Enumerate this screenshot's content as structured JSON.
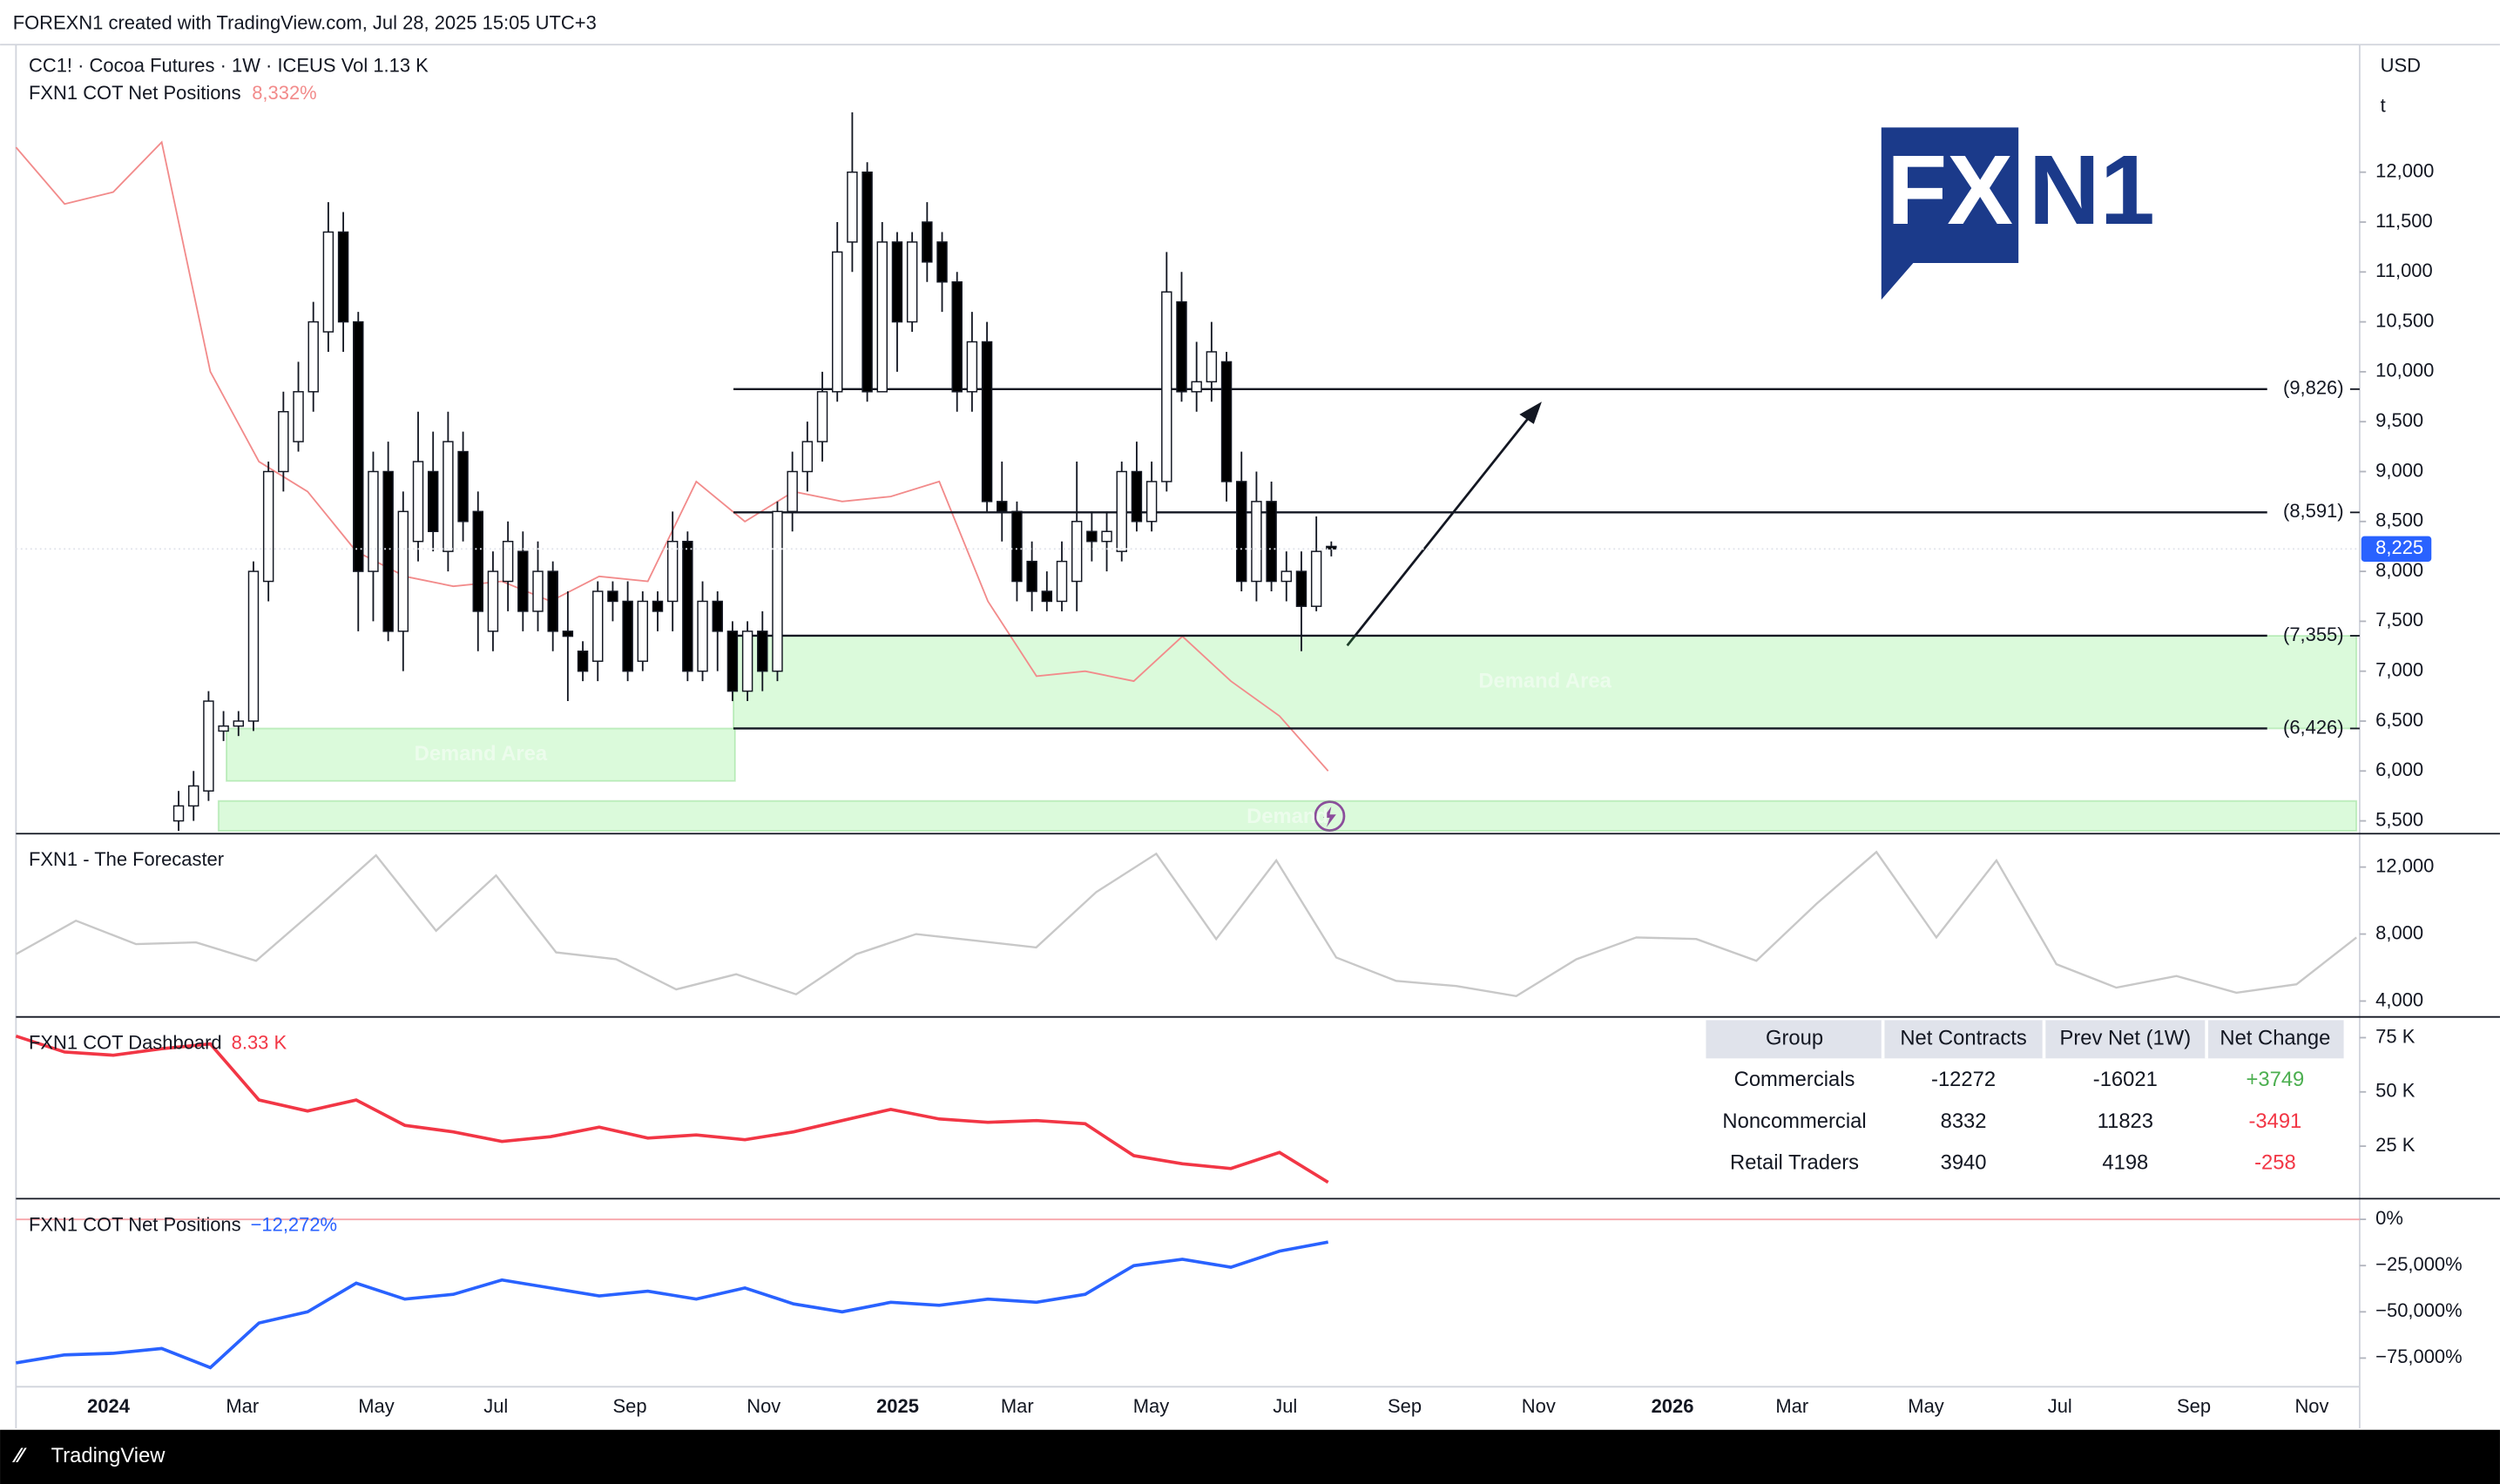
{
  "header": {
    "text": "FOREXN1 created with TradingView.com, Jul 28, 2025 15:05 UTC+3"
  },
  "footer": {
    "text": "TradingView"
  },
  "logo": {
    "left": "FX",
    "right": "N1"
  },
  "time_axis": [
    "2024",
    "Mar",
    "May",
    "Jul",
    "Sep",
    "Nov",
    "2025",
    "Mar",
    "May",
    "Jul",
    "Sep",
    "Nov",
    "2026",
    "Mar",
    "May",
    "Jul",
    "Sep",
    "Nov"
  ],
  "chart_data": [
    {
      "type": "candlestick",
      "title": "CC1! · Cocoa Futures · 1W · ICEUS",
      "volume": "Vol 1.13 K",
      "currency": "USD",
      "unit": "t",
      "open": [
        5500,
        5650,
        5800,
        6400,
        6450,
        6500,
        7900,
        9000,
        9300,
        9800,
        10400,
        11400,
        10500,
        8000,
        9000,
        7400,
        8300,
        9000,
        8200,
        9200,
        8600,
        7400,
        7900,
        8200,
        7600,
        8000,
        7400,
        7200,
        7100,
        7800,
        7700,
        7100,
        7700,
        7700,
        8300,
        7000,
        7700,
        7400,
        6800,
        7400,
        7000,
        8600,
        9000,
        9300,
        9800,
        11300,
        12000,
        9800,
        11300,
        10500,
        11500,
        11300,
        10900,
        9800,
        10300,
        8700,
        8600,
        8100,
        7800,
        7700,
        7900,
        8400,
        8300,
        8200,
        9000,
        8500,
        8900,
        10700,
        9800,
        9900,
        10100,
        8900,
        7900,
        8700,
        7900,
        8000,
        7650,
        8250
      ],
      "high": [
        5800,
        6000,
        6800,
        6600,
        6600,
        8100,
        9100,
        9800,
        10100,
        10700,
        11700,
        11600,
        10600,
        9200,
        9300,
        8800,
        9600,
        9400,
        9600,
        9400,
        8800,
        8200,
        8500,
        8400,
        8300,
        8100,
        7800,
        7300,
        7900,
        7900,
        7900,
        7800,
        7800,
        8600,
        8400,
        7900,
        7800,
        7500,
        7500,
        7600,
        8700,
        9200,
        9500,
        10000,
        11500,
        12600,
        12100,
        11500,
        11400,
        11400,
        11700,
        11400,
        11000,
        10600,
        10500,
        9100,
        8700,
        8300,
        8000,
        8300,
        9100,
        8600,
        8600,
        9100,
        9300,
        9100,
        11200,
        11000,
        10300,
        10500,
        10200,
        9200,
        9000,
        8900,
        8200,
        8200,
        8550,
        8300
      ],
      "low": [
        5400,
        5500,
        5700,
        6300,
        6350,
        6400,
        7700,
        8800,
        9200,
        9600,
        10200,
        10200,
        7400,
        7500,
        7300,
        7000,
        8100,
        8200,
        8000,
        8300,
        7200,
        7200,
        7600,
        7400,
        7400,
        7200,
        6700,
        6900,
        6900,
        7500,
        6900,
        7000,
        7400,
        7400,
        6900,
        6900,
        7000,
        6700,
        6700,
        6800,
        6900,
        8400,
        8800,
        9100,
        9700,
        11000,
        9700,
        9800,
        10000,
        10400,
        10900,
        10600,
        9600,
        9600,
        8600,
        8300,
        7700,
        7600,
        7600,
        7600,
        7600,
        8100,
        8000,
        8100,
        8400,
        8400,
        8800,
        9700,
        9600,
        9700,
        8700,
        7800,
        7700,
        7800,
        7700,
        7200,
        7600,
        8150
      ],
      "close": [
        5650,
        5850,
        6700,
        6450,
        6500,
        8000,
        9000,
        9600,
        9800,
        10500,
        11400,
        10500,
        8000,
        9000,
        7400,
        8600,
        9100,
        8400,
        9300,
        8500,
        7600,
        8000,
        8300,
        7600,
        8000,
        7400,
        7350,
        7000,
        7800,
        7700,
        7000,
        7700,
        7600,
        8300,
        7000,
        7700,
        7400,
        6800,
        7400,
        7000,
        8600,
        9000,
        9300,
        9800,
        11200,
        12000,
        9800,
        11300,
        10500,
        11300,
        11100,
        10900,
        9800,
        10300,
        8700,
        8600,
        7900,
        7800,
        7700,
        8100,
        8500,
        8300,
        8400,
        9000,
        8500,
        8900,
        10800,
        9800,
        9900,
        10200,
        8900,
        7900,
        8700,
        7900,
        8000,
        7650,
        8200,
        8225
      ],
      "ylim": [
        5372,
        13246
      ],
      "yticks": [
        {
          "value": 5500,
          "label": "5,500"
        },
        {
          "value": 6000,
          "label": "6,000"
        },
        {
          "value": 6500,
          "label": "6,500"
        },
        {
          "value": 7000,
          "label": "7,000"
        },
        {
          "value": 7500,
          "label": "7,500"
        },
        {
          "value": 8000,
          "label": "8,000"
        },
        {
          "value": 8500,
          "label": "8,500"
        },
        {
          "value": 9000,
          "label": "9,000"
        },
        {
          "value": 9500,
          "label": "9,500"
        },
        {
          "value": 10000,
          "label": "10,000"
        },
        {
          "value": 10500,
          "label": "10,500"
        },
        {
          "value": 11000,
          "label": "11,000"
        },
        {
          "value": 11500,
          "label": "11,500"
        },
        {
          "value": 12000,
          "label": "12,000"
        }
      ],
      "last_price": {
        "value": 8225,
        "label": "8,225"
      },
      "levels": [
        {
          "value": 9826,
          "label": "(9,826)"
        },
        {
          "value": 8591,
          "label": "(8,591)"
        },
        {
          "value": 7355,
          "label": "(7,355)"
        },
        {
          "value": 6426,
          "label": "(6,426)"
        }
      ],
      "zones": [
        {
          "label": "Demand Area",
          "low": 6426,
          "high": 7355
        },
        {
          "label": "Demand Area",
          "low": 5900,
          "high": 6426
        },
        {
          "label": "Demand",
          "low": 5400,
          "high": 5700
        }
      ],
      "overlay": {
        "name": "FXN1 COT Net Positions",
        "label": "8,332%",
        "color": "#f28b8b",
        "values": [
          12250,
          11680,
          11800,
          12300,
          10000,
          9100,
          8800,
          8200,
          7950,
          7850,
          7900,
          7700,
          7950,
          7900,
          8900,
          8500,
          8800,
          8700,
          8750,
          8900,
          7700,
          6950,
          7000,
          6900,
          7350,
          6900,
          6550,
          6000
        ]
      }
    },
    {
      "type": "line",
      "title": "FXN1 - The Forecaster",
      "color": "#c8c8c8",
      "values": [
        6800,
        8800,
        7400,
        7500,
        6400,
        9500,
        12700,
        8200,
        11500,
        6900,
        6500,
        4700,
        5600,
        4400,
        6800,
        8000,
        7600,
        7200,
        10500,
        12800,
        7700,
        12400,
        6600,
        5200,
        4900,
        4300,
        6500,
        7800,
        7700,
        6400,
        9800,
        12900,
        7800,
        12400,
        6200,
        4800,
        5500,
        4500,
        5000,
        7800
      ],
      "ylim": [
        3050,
        13900
      ],
      "yticks": [
        {
          "value": 4000,
          "label": "4,000"
        },
        {
          "value": 8000,
          "label": "8,000"
        },
        {
          "value": 12000,
          "label": "12,000"
        }
      ]
    },
    {
      "type": "line",
      "title": "FXN1 COT Dashboard",
      "label": "8.33 K",
      "color": "#f23645",
      "values": [
        75700,
        68400,
        66900,
        69900,
        72100,
        46300,
        41200,
        46300,
        34600,
        31600,
        27200,
        29400,
        33800,
        28700,
        30200,
        28000,
        31600,
        36800,
        41900,
        37500,
        36000,
        36800,
        35300,
        20600,
        16900,
        14700,
        22100,
        8330
      ],
      "ylim": [
        800,
        83800
      ],
      "yticks": [
        {
          "value": 25000,
          "label": "25 K"
        },
        {
          "value": 50000,
          "label": "50 K"
        },
        {
          "value": 75000,
          "label": "75 K"
        }
      ]
    },
    {
      "type": "line",
      "title": "FXN1 COT Net Positions",
      "label": "−12,272%",
      "color": "#2962ff",
      "values": [
        -77600,
        -73300,
        -72400,
        -69800,
        -80200,
        -56000,
        -50000,
        -34500,
        -43100,
        -40500,
        -32800,
        -37100,
        -41400,
        -38800,
        -43100,
        -37100,
        -45700,
        -50000,
        -44800,
        -46500,
        -43100,
        -44800,
        -40500,
        -25000,
        -21600,
        -25900,
        -17200,
        -12272
      ],
      "ylim": [
        -90500,
        10300
      ],
      "yticks": [
        {
          "value": -75000,
          "label": "−75,000%"
        },
        {
          "value": -50000,
          "label": "−50,000%"
        },
        {
          "value": -25000,
          "label": "−25,000%"
        },
        {
          "value": 0,
          "label": "0%"
        }
      ]
    }
  ],
  "table": {
    "header": [
      "Group",
      "Net Contracts",
      "Prev Net (1W)",
      "Net Change"
    ],
    "rows": [
      [
        "Commercials",
        "-12272",
        "-16021",
        "+3749"
      ],
      [
        "Noncommercial",
        "8332",
        "11823",
        "-3491"
      ],
      [
        "Retail Traders",
        "3940",
        "4198",
        "-258"
      ]
    ]
  }
}
